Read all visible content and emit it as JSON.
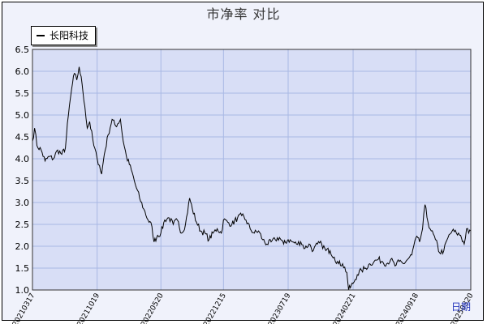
{
  "chart_data": {
    "type": "line",
    "title": "市净率  对比",
    "xlabel": "日期",
    "ylabel": "",
    "ylim": [
      1.0,
      6.5
    ],
    "yticks": [
      1.0,
      1.5,
      2.0,
      2.5,
      3.0,
      3.5,
      4.0,
      4.5,
      5.0,
      5.5,
      6.0,
      6.5
    ],
    "x_range": [
      "2021-03-17",
      "2025-03-20"
    ],
    "x_tick_labels": [
      "20210317",
      "20211019",
      "20220520",
      "20221215",
      "20230719",
      "20240221",
      "20240918",
      "20250320"
    ],
    "x_tick_dates": [
      "2021-03-17",
      "2021-10-19",
      "2022-05-20",
      "2022-12-15",
      "2023-07-19",
      "2024-02-21",
      "2024-09-18",
      "2025-03-20"
    ],
    "grid": true,
    "legend": "top-left",
    "series": [
      {
        "name": "长阳科技",
        "color": "#000000",
        "points": [
          [
            "2021-03-17",
            4.4
          ],
          [
            "2021-03-24",
            4.7
          ],
          [
            "2021-04-01",
            4.3
          ],
          [
            "2021-04-15",
            4.2
          ],
          [
            "2021-04-28",
            3.95
          ],
          [
            "2021-05-12",
            4.05
          ],
          [
            "2021-05-26",
            4.0
          ],
          [
            "2021-06-09",
            4.2
          ],
          [
            "2021-06-23",
            4.1
          ],
          [
            "2021-07-05",
            4.25
          ],
          [
            "2021-07-15",
            5.0
          ],
          [
            "2021-07-26",
            5.6
          ],
          [
            "2021-08-04",
            5.95
          ],
          [
            "2021-08-12",
            5.8
          ],
          [
            "2021-08-20",
            6.1
          ],
          [
            "2021-08-30",
            5.7
          ],
          [
            "2021-09-08",
            5.2
          ],
          [
            "2021-09-16",
            4.7
          ],
          [
            "2021-09-24",
            4.85
          ],
          [
            "2021-10-08",
            4.3
          ],
          [
            "2021-10-19",
            4.0
          ],
          [
            "2021-10-27",
            3.85
          ],
          [
            "2021-11-03",
            3.65
          ],
          [
            "2021-11-12",
            4.1
          ],
          [
            "2021-11-25",
            4.55
          ],
          [
            "2021-12-08",
            4.9
          ],
          [
            "2021-12-20",
            4.75
          ],
          [
            "2022-01-05",
            4.9
          ],
          [
            "2022-01-14",
            4.4
          ],
          [
            "2022-01-25",
            4.05
          ],
          [
            "2022-02-10",
            3.75
          ],
          [
            "2022-02-24",
            3.4
          ],
          [
            "2022-03-10",
            3.1
          ],
          [
            "2022-03-24",
            2.85
          ],
          [
            "2022-04-07",
            2.6
          ],
          [
            "2022-04-20",
            2.45
          ],
          [
            "2022-04-27",
            2.1
          ],
          [
            "2022-05-09",
            2.25
          ],
          [
            "2022-05-20",
            2.3
          ],
          [
            "2022-06-02",
            2.6
          ],
          [
            "2022-06-16",
            2.65
          ],
          [
            "2022-06-30",
            2.5
          ],
          [
            "2022-07-14",
            2.6
          ],
          [
            "2022-07-28",
            2.3
          ],
          [
            "2022-08-10",
            2.5
          ],
          [
            "2022-08-24",
            3.1
          ],
          [
            "2022-09-02",
            2.85
          ],
          [
            "2022-09-16",
            2.55
          ],
          [
            "2022-09-30",
            2.35
          ],
          [
            "2022-10-14",
            2.3
          ],
          [
            "2022-10-28",
            2.15
          ],
          [
            "2022-11-10",
            2.3
          ],
          [
            "2022-11-24",
            2.4
          ],
          [
            "2022-12-08",
            2.3
          ],
          [
            "2022-12-15",
            2.6
          ],
          [
            "2022-12-29",
            2.55
          ],
          [
            "2023-01-12",
            2.5
          ],
          [
            "2023-01-31",
            2.65
          ],
          [
            "2023-02-14",
            2.7
          ],
          [
            "2023-02-28",
            2.6
          ],
          [
            "2023-03-14",
            2.4
          ],
          [
            "2023-03-28",
            2.3
          ],
          [
            "2023-04-11",
            2.35
          ],
          [
            "2023-04-25",
            2.15
          ],
          [
            "2023-05-09",
            2.05
          ],
          [
            "2023-05-23",
            2.1
          ],
          [
            "2023-06-06",
            2.15
          ],
          [
            "2023-06-20",
            2.2
          ],
          [
            "2023-07-04",
            2.05
          ],
          [
            "2023-07-19",
            2.15
          ],
          [
            "2023-08-02",
            2.1
          ],
          [
            "2023-08-16",
            2.05
          ],
          [
            "2023-08-30",
            2.1
          ],
          [
            "2023-09-13",
            1.95
          ],
          [
            "2023-09-27",
            2.05
          ],
          [
            "2023-10-11",
            1.9
          ],
          [
            "2023-10-25",
            2.05
          ],
          [
            "2023-11-08",
            2.05
          ],
          [
            "2023-11-22",
            1.9
          ],
          [
            "2023-12-06",
            1.9
          ],
          [
            "2023-12-20",
            1.75
          ],
          [
            "2024-01-03",
            1.6
          ],
          [
            "2024-01-17",
            1.6
          ],
          [
            "2024-01-31",
            1.4
          ],
          [
            "2024-02-06",
            1.0
          ],
          [
            "2024-02-21",
            1.15
          ],
          [
            "2024-03-06",
            1.35
          ],
          [
            "2024-03-20",
            1.45
          ],
          [
            "2024-04-03",
            1.5
          ],
          [
            "2024-04-17",
            1.6
          ],
          [
            "2024-05-01",
            1.65
          ],
          [
            "2024-05-15",
            1.7
          ],
          [
            "2024-05-29",
            1.65
          ],
          [
            "2024-06-12",
            1.6
          ],
          [
            "2024-06-26",
            1.7
          ],
          [
            "2024-07-10",
            1.55
          ],
          [
            "2024-07-24",
            1.65
          ],
          [
            "2024-08-07",
            1.6
          ],
          [
            "2024-08-21",
            1.7
          ],
          [
            "2024-09-04",
            1.8
          ],
          [
            "2024-09-18",
            2.2
          ],
          [
            "2024-09-30",
            2.1
          ],
          [
            "2024-10-10",
            2.4
          ],
          [
            "2024-10-18",
            2.95
          ],
          [
            "2024-10-28",
            2.55
          ],
          [
            "2024-11-08",
            2.35
          ],
          [
            "2024-11-22",
            2.15
          ],
          [
            "2024-12-06",
            1.85
          ],
          [
            "2024-12-20",
            1.9
          ],
          [
            "2025-01-03",
            2.2
          ],
          [
            "2025-01-17",
            2.35
          ],
          [
            "2025-01-31",
            2.3
          ],
          [
            "2025-02-14",
            2.25
          ],
          [
            "2025-02-26",
            2.05
          ],
          [
            "2025-03-06",
            2.4
          ],
          [
            "2025-03-13",
            2.3
          ],
          [
            "2025-03-20",
            2.35
          ]
        ]
      }
    ]
  },
  "colors": {
    "plot_background": "#d8def6",
    "grid": "#a9b8e4",
    "line": "#000000",
    "frame_background": "#f0f2fb"
  }
}
